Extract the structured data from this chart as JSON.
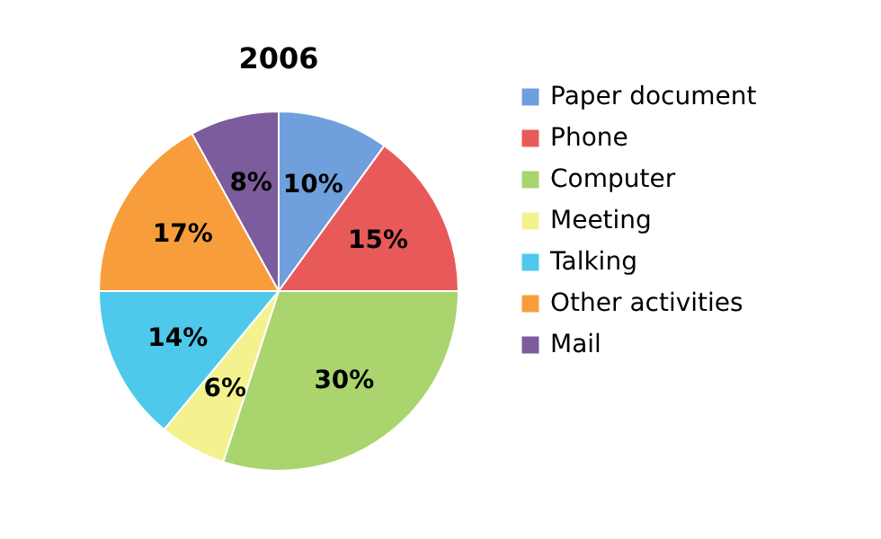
{
  "chart_data": {
    "type": "pie",
    "title": "2006",
    "categories": [
      "Paper document",
      "Phone",
      "Computer",
      "Meeting",
      "Talking",
      "Other activities",
      "Mail"
    ],
    "values": [
      10,
      15,
      30,
      6,
      14,
      17,
      8
    ],
    "colors": [
      "#6f9fdc",
      "#e85a5a",
      "#a9d46e",
      "#f4f28e",
      "#4ec9ec",
      "#f89d3c",
      "#7c5c9c"
    ],
    "value_labels": [
      "10%",
      "15%",
      "30%",
      "6%",
      "14%",
      "17%",
      "8%"
    ],
    "legend": "right"
  }
}
